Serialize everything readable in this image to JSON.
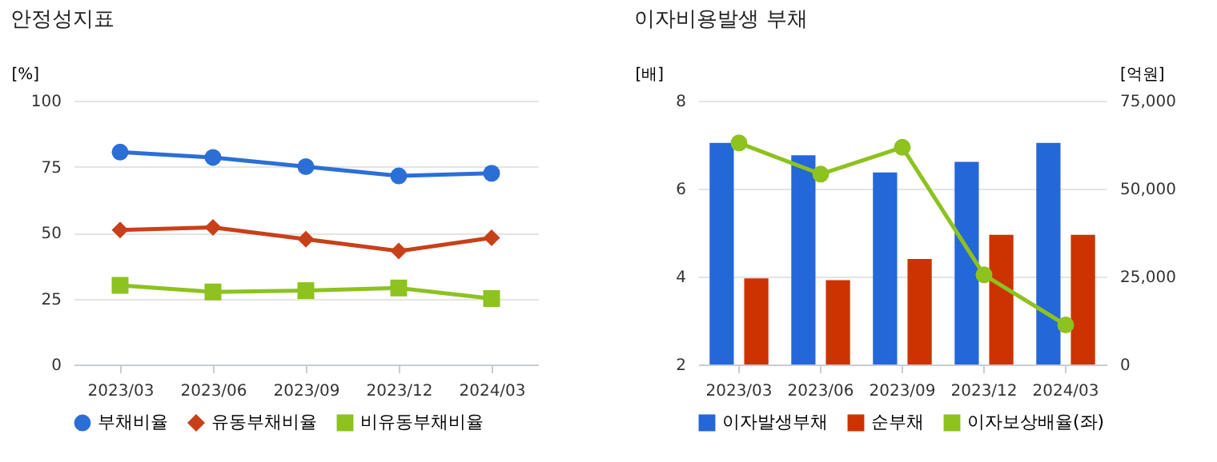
{
  "chart_data": [
    {
      "type": "line",
      "title": "안정성지표",
      "ylabel": "[%]",
      "categories": [
        "2023/03",
        "2023/06",
        "2023/09",
        "2023/12",
        "2024/03"
      ],
      "series": [
        {
          "name": "부채비율",
          "color": "#2b6fd6",
          "marker": "circle",
          "values": [
            80.5,
            78.5,
            75,
            71.5,
            72.5
          ]
        },
        {
          "name": "유동부채비율",
          "color": "#c8401a",
          "marker": "diamond",
          "values": [
            51,
            52,
            47.5,
            43,
            48
          ]
        },
        {
          "name": "비유동부채비율",
          "color": "#8dc21f",
          "marker": "square",
          "values": [
            30,
            27.5,
            28,
            29,
            25
          ]
        }
      ],
      "ylim": [
        0,
        100
      ],
      "yticks": [
        0,
        25,
        50,
        75,
        100
      ],
      "grid": "y",
      "legend": "bottom"
    },
    {
      "type": "bar",
      "title": "이자비용발생 부채",
      "ylabel": "[배]",
      "y2label": "[억원]",
      "categories": [
        "2023/03",
        "2023/06",
        "2023/09",
        "2023/12",
        "2024/03"
      ],
      "series": [
        {
          "name": "이자발생부채",
          "color": "#2467d8",
          "axis": "y2",
          "values": [
            63000,
            59500,
            54600,
            57600,
            63000
          ]
        },
        {
          "name": "순부채",
          "color": "#cc3300",
          "axis": "y2",
          "values": [
            24500,
            24000,
            30000,
            36900,
            36900
          ]
        },
        {
          "name": "이자보상배율(좌)",
          "type": "line",
          "color": "#8dc21f",
          "marker": "circle",
          "axis": "y",
          "values": [
            7.04,
            6.33,
            6.94,
            4.04,
            2.9
          ]
        }
      ],
      "ylim": [
        2,
        8
      ],
      "yticks": [
        2,
        4,
        6,
        8
      ],
      "y2lim": [
        0,
        75000
      ],
      "y2ticks": [
        0,
        {
          "value": 25000,
          "label": "25,000"
        },
        {
          "value": 50000,
          "label": "50,000"
        },
        {
          "value": 75000,
          "label": "75,000"
        }
      ],
      "grid": "y",
      "legend": "bottom"
    }
  ]
}
